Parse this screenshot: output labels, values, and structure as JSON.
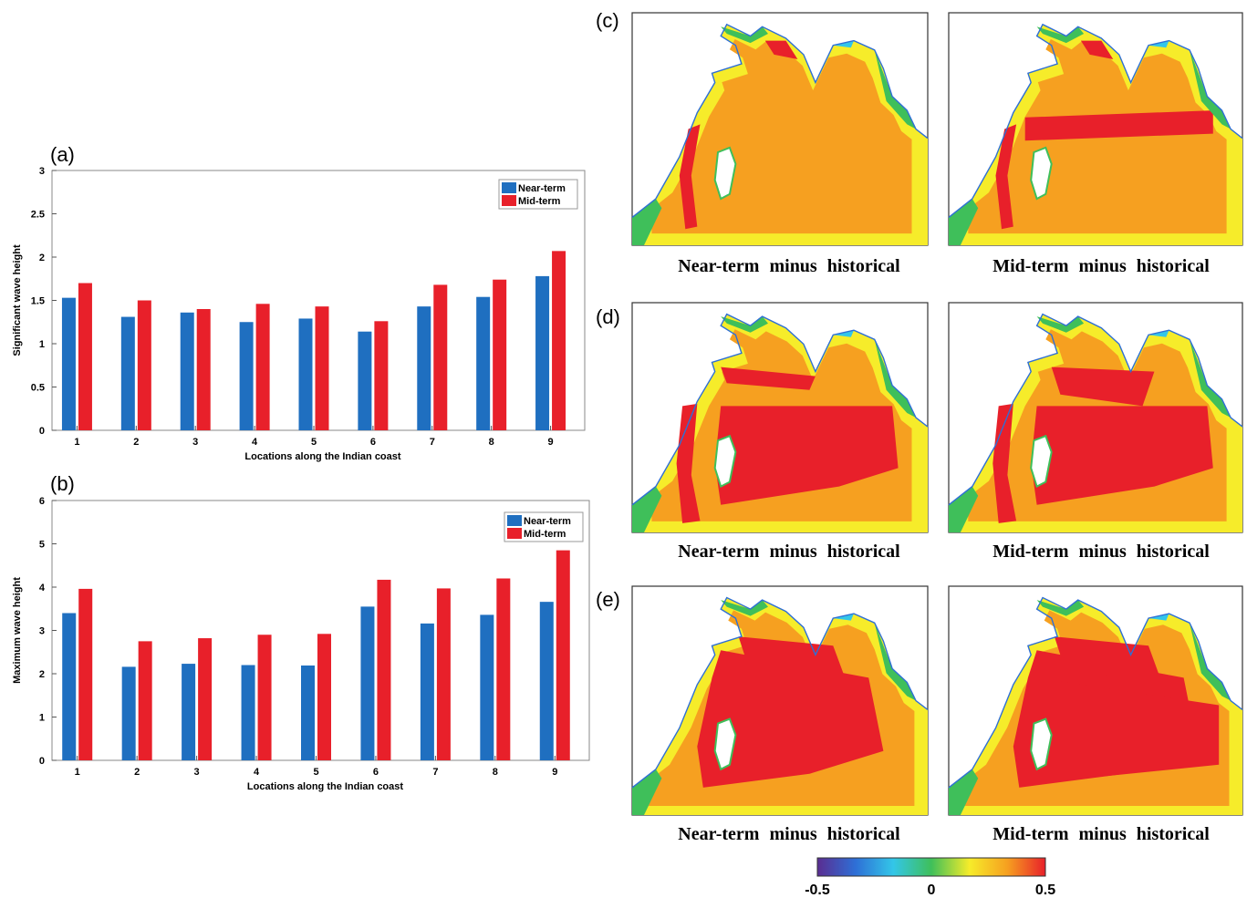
{
  "chart_data": [
    {
      "id": "a",
      "type": "bar",
      "panel_label": "(a)",
      "categories": [
        "1",
        "2",
        "3",
        "4",
        "5",
        "6",
        "7",
        "8",
        "9"
      ],
      "series": [
        {
          "name": "Near-term",
          "color": "#1f6fc0",
          "values": [
            1.53,
            1.31,
            1.36,
            1.25,
            1.29,
            1.14,
            1.43,
            1.54,
            1.78
          ]
        },
        {
          "name": "Mid-term",
          "color": "#e8202a",
          "values": [
            1.7,
            1.5,
            1.4,
            1.46,
            1.43,
            1.26,
            1.68,
            1.74,
            2.07
          ]
        }
      ],
      "xlabel": "Locations along the Indian coast",
      "ylabel": "Significant wave height",
      "ylim": [
        0,
        3
      ],
      "yticks": [
        "0",
        "0.5",
        "1",
        "1.5",
        "2",
        "2.5",
        "3"
      ],
      "legend": "top-right",
      "grid": false
    },
    {
      "id": "b",
      "type": "bar",
      "panel_label": "(b)",
      "categories": [
        "1",
        "2",
        "3",
        "4",
        "5",
        "6",
        "7",
        "8",
        "9"
      ],
      "series": [
        {
          "name": "Near-term",
          "color": "#1f6fc0",
          "values": [
            3.4,
            2.16,
            2.23,
            2.2,
            2.19,
            3.55,
            3.16,
            3.36,
            3.66
          ]
        },
        {
          "name": "Mid-term",
          "color": "#e8202a",
          "values": [
            3.96,
            2.75,
            2.82,
            2.9,
            2.92,
            4.17,
            3.97,
            4.2,
            4.85
          ]
        }
      ],
      "xlabel": "Locations along the Indian coast",
      "ylabel": "Maximum wave height",
      "ylim": [
        0,
        6
      ],
      "yticks": [
        "0",
        "1",
        "2",
        "3",
        "4",
        "5",
        "6"
      ],
      "legend": "top-right",
      "grid": false
    },
    {
      "id": "maps",
      "type": "heatmap",
      "rows": [
        {
          "panel_label": "(c)",
          "left_caption": "Near-term  minus  historical",
          "right_caption": "Mid-term  minus  historical"
        },
        {
          "panel_label": "(d)",
          "left_caption": "Near-term  minus  historical",
          "right_caption": "Mid-term  minus  historical"
        },
        {
          "panel_label": "(e)",
          "left_caption": "Near-term  minus  historical",
          "right_caption": "Mid-term  minus  historical"
        }
      ],
      "colorbar": {
        "min": -0.5,
        "max": 0.5,
        "tick_labels": [
          "-0.5",
          "0",
          "0.5"
        ],
        "colors": [
          "#5a2d91",
          "#2e6fd6",
          "#33c6e8",
          "#3fbf5a",
          "#f6ec2a",
          "#f6a020",
          "#e8202a"
        ]
      }
    }
  ]
}
